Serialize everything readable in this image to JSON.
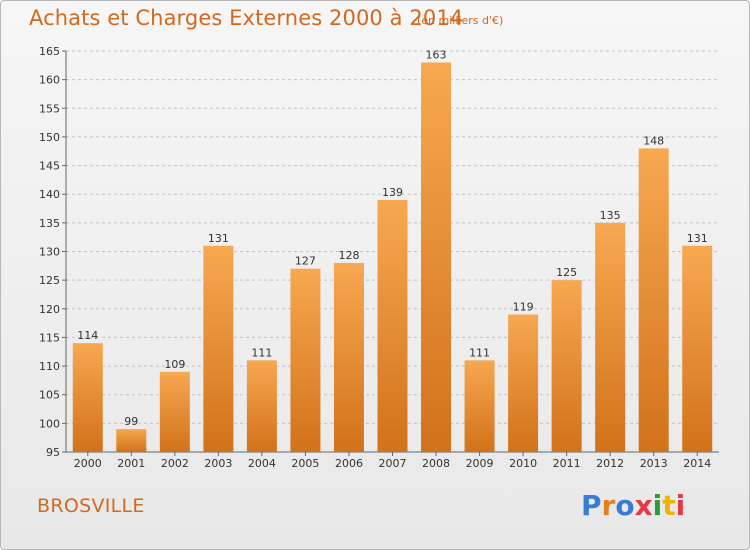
{
  "title": "Achats et Charges Externes 2000 à 2014",
  "subtitle": "(en milliers d'€)",
  "commune": "BROSVILLE",
  "logo": "Proxiti",
  "colors": {
    "title": "#d2691e",
    "bar_light": "#f7a851",
    "bar_dark": "#d2721a",
    "logo": [
      "#3a7bd5",
      "#e67e22",
      "#3a7bd5",
      "#e63946",
      "#2e9b3a",
      "#f0b400",
      "#e63946"
    ]
  },
  "chart_data": {
    "type": "bar",
    "categories": [
      "2000",
      "2001",
      "2002",
      "2003",
      "2004",
      "2005",
      "2006",
      "2007",
      "2008",
      "2009",
      "2010",
      "2011",
      "2012",
      "2013",
      "2014"
    ],
    "values": [
      114,
      99,
      109,
      131,
      111,
      127,
      128,
      139,
      163,
      111,
      119,
      125,
      135,
      148,
      131
    ],
    "ylim": [
      95,
      165
    ],
    "yticks": [
      95,
      100,
      105,
      110,
      115,
      120,
      125,
      130,
      135,
      140,
      145,
      150,
      155,
      160,
      165
    ],
    "grid": true,
    "data_labels": true
  }
}
